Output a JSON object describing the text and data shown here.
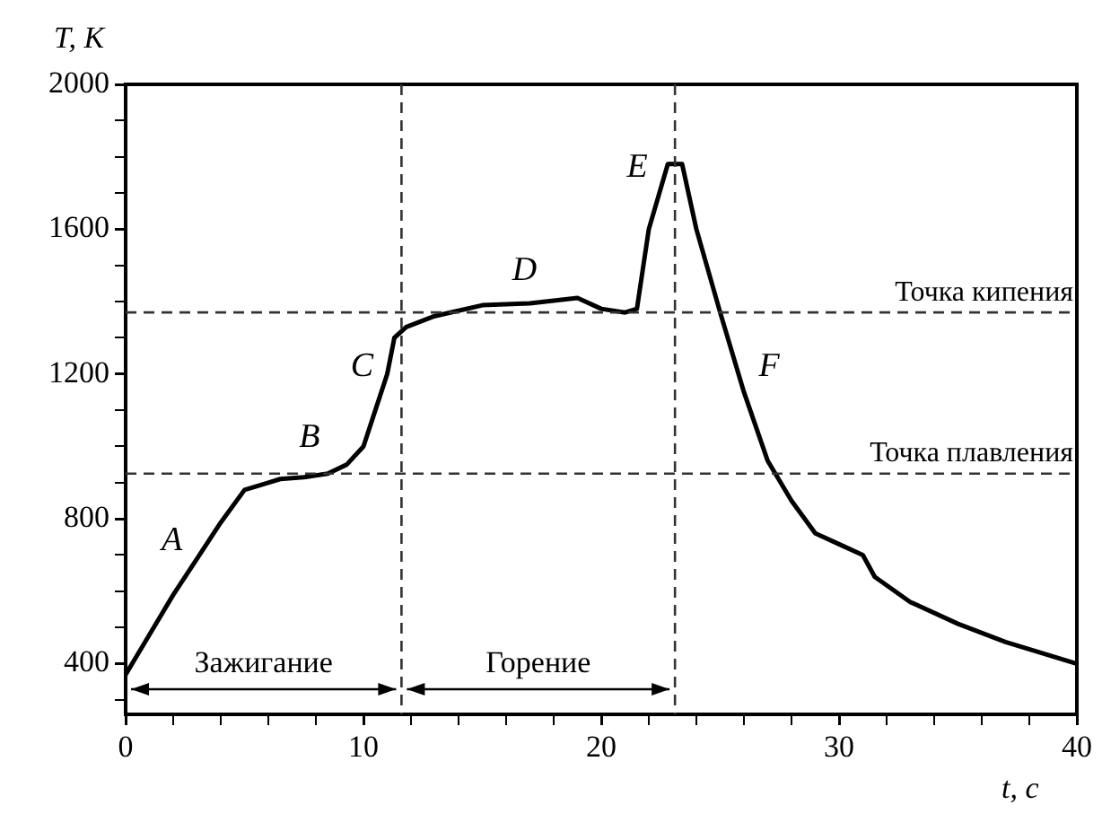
{
  "chart_data": {
    "type": "line",
    "xlabel": "t, с",
    "ylabel": "T, К",
    "x": [
      0,
      1,
      2,
      3,
      4,
      5,
      6,
      6.5,
      7.5,
      8.5,
      9.3,
      10,
      10.5,
      11,
      11.3,
      11.8,
      13,
      15,
      17,
      19,
      20,
      21,
      21.5,
      22,
      22.8,
      23.4,
      24,
      25,
      26,
      27,
      28,
      29,
      30,
      31,
      31.5,
      33,
      35,
      37,
      40
    ],
    "series": [
      {
        "color": "#000000",
        "values": [
          370,
          480,
          590,
          690,
          790,
          880,
          900,
          910,
          915,
          925,
          950,
          1000,
          1100,
          1200,
          1300,
          1330,
          1360,
          1390,
          1395,
          1410,
          1380,
          1370,
          1380,
          1600,
          1780,
          1780,
          1600,
          1370,
          1150,
          960,
          850,
          760,
          730,
          700,
          640,
          570,
          510,
          460,
          400
        ]
      }
    ],
    "xlim": [
      0,
      40
    ],
    "ylim": [
      260,
      2000
    ],
    "xticks": [
      0,
      {
        "value": 2,
        "label": null
      },
      {
        "value": 4,
        "label": null
      },
      {
        "value": 6,
        "label": null
      },
      {
        "value": 8,
        "label": null
      },
      10,
      {
        "value": 12,
        "label": null
      },
      {
        "value": 14,
        "label": null
      },
      {
        "value": 16,
        "label": null
      },
      {
        "value": 18,
        "label": null
      },
      20,
      {
        "value": 22,
        "label": null
      },
      {
        "value": 24,
        "label": null
      },
      {
        "value": 26,
        "label": null
      },
      {
        "value": 28,
        "label": null
      },
      30,
      {
        "value": 32,
        "label": null
      },
      {
        "value": 34,
        "label": null
      },
      {
        "value": 36,
        "label": null
      },
      {
        "value": 38,
        "label": null
      },
      40
    ],
    "yticks": [
      {
        "value": 300,
        "label": null
      },
      400,
      {
        "value": 500,
        "label": null
      },
      {
        "value": 600,
        "label": null
      },
      {
        "value": 700,
        "label": null
      },
      800,
      {
        "value": 900,
        "label": null
      },
      {
        "value": 1000,
        "label": null
      },
      {
        "value": 1100,
        "label": null
      },
      1200,
      {
        "value": 1300,
        "label": null
      },
      {
        "value": 1400,
        "label": null
      },
      {
        "value": 1500,
        "label": null
      },
      1600,
      {
        "value": 1700,
        "label": null
      },
      {
        "value": 1800,
        "label": null
      },
      {
        "value": 1900,
        "label": null
      },
      2000
    ],
    "grid": false,
    "legend": false,
    "marker": "none",
    "line_style": "solid",
    "ref_lines": [
      {
        "axis": "y",
        "value": 1370,
        "label": "Точка кипения",
        "line_style": "dashed"
      },
      {
        "axis": "y",
        "value": 925,
        "label": "Точка плавления",
        "line_style": "dashed"
      },
      {
        "axis": "x",
        "value": 11.6,
        "line_style": "dashed"
      },
      {
        "axis": "x",
        "value": 23.1,
        "line_style": "dashed"
      }
    ],
    "annotations": [
      "A",
      "B",
      "C",
      "D",
      "E",
      "F",
      "Зажигание",
      "Горение"
    ]
  }
}
